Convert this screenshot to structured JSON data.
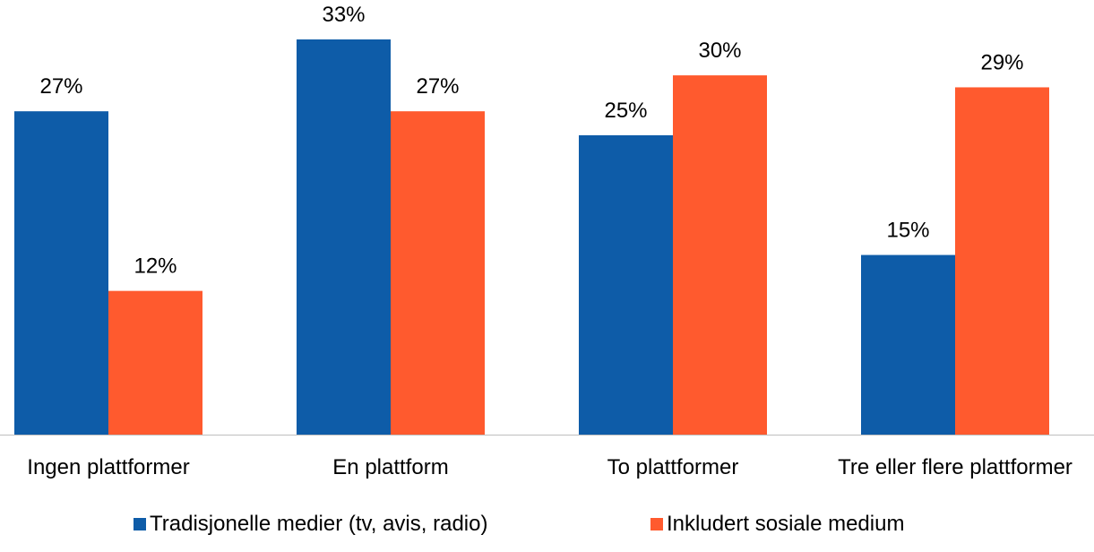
{
  "chart_data": {
    "type": "bar",
    "categories": [
      "Ingen plattformer",
      "En plattform",
      "To plattformer",
      "Tre eller flere plattformer"
    ],
    "series": [
      {
        "name": "Tradisjonelle medier (tv, avis, radio)",
        "values": [
          27,
          33,
          25,
          15
        ],
        "labels": [
          "27%",
          "33%",
          "25%",
          "15%"
        ],
        "color": "#0E5CA8"
      },
      {
        "name": "Inkludert sosiale medium",
        "values": [
          12,
          27,
          30,
          29
        ],
        "labels": [
          "12%",
          "27%",
          "30%",
          "29%"
        ],
        "color": "#FF5A2E"
      }
    ],
    "ylim": [
      0,
      33
    ],
    "grid": false,
    "legend": "bottom-center",
    "axis_color": "#BFBFBF"
  }
}
